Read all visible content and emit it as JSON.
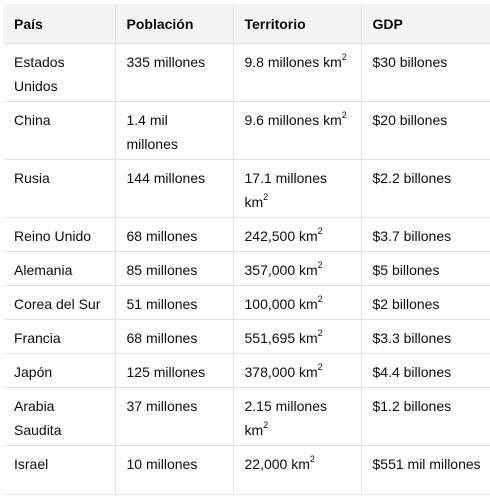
{
  "table": {
    "headers": [
      "País",
      "Población",
      "Territorio",
      "GDP"
    ],
    "rows": [
      [
        "Estados Unidos",
        "335 millones",
        "9.8 millones km²",
        "$30 billones"
      ],
      [
        "China",
        "1.4 mil millones",
        "9.6 millones km²",
        "$20 billones"
      ],
      [
        "Rusia",
        "144 millones",
        "17.1 millones km²",
        "$2.2 billones"
      ],
      [
        "Reino Unido",
        "68 millones",
        "242,500 km²",
        "$3.7 billones"
      ],
      [
        "Alemania",
        "85 millones",
        "357,000 km²",
        "$5 billones"
      ],
      [
        "Corea del Sur",
        "51 millones",
        "100,000 km²",
        "$2 billones"
      ],
      [
        "Francia",
        "68 millones",
        "551,695 km²",
        "$3.3 billones"
      ],
      [
        "Japón",
        "125 millones",
        "378,000 km²",
        "$4.4 billones"
      ],
      [
        "Arabia Saudita",
        "37 millones",
        "2.15 millones km²",
        "$1.2 billones"
      ],
      [
        "Israel",
        "10 millones",
        "22,000 km²",
        "$551 mil millones"
      ]
    ]
  }
}
